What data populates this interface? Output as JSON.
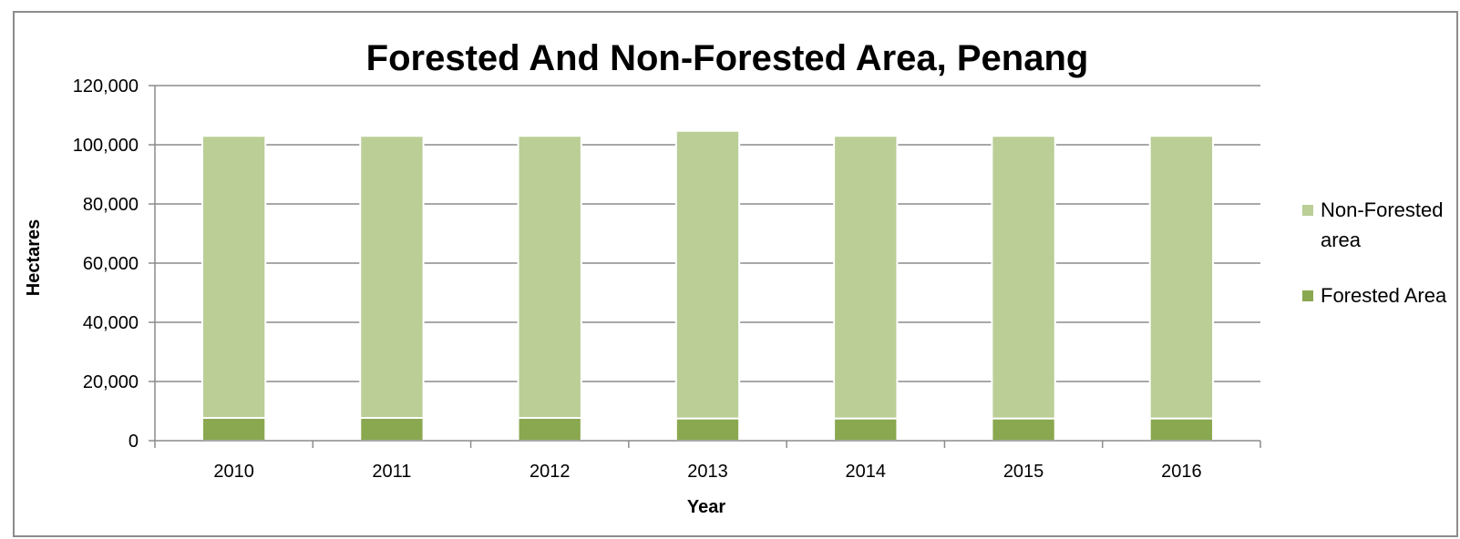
{
  "chart_data": {
    "type": "bar",
    "stacked": true,
    "title": "Forested And Non-Forested Area, Penang",
    "xlabel": "Year",
    "ylabel": "Hectares",
    "categories": [
      "2010",
      "2011",
      "2012",
      "2013",
      "2014",
      "2015",
      "2016"
    ],
    "ylim": [
      0,
      120000
    ],
    "yticks": [
      0,
      20000,
      40000,
      60000,
      80000,
      100000,
      120000
    ],
    "ytick_labels": [
      "0",
      "20,000",
      "40,000",
      "60,000",
      "80,000",
      "100,000",
      "120,000"
    ],
    "grid": true,
    "legend_position": "right",
    "series": [
      {
        "name": "Forested Area",
        "color": "#8aa84f",
        "values": [
          7700,
          7700,
          7700,
          7500,
          7500,
          7500,
          7500
        ]
      },
      {
        "name": "Non-Forested area",
        "color": "#bace96",
        "values": [
          95300,
          95300,
          95300,
          97200,
          95500,
          95500,
          95500
        ]
      }
    ],
    "legend": [
      {
        "name": "Non-Forested",
        "name_line2": "area",
        "color": "#bace96"
      },
      {
        "name": "Forested Area",
        "color": "#8aa84f"
      }
    ]
  }
}
